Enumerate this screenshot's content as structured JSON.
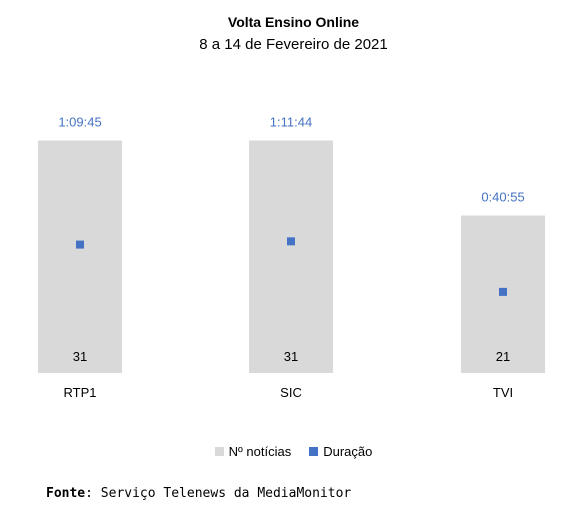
{
  "title": "Volta Ensino Online",
  "subtitle": "8 a 14 de Fevereiro de 2021",
  "colors": {
    "bar": "#d9d9d9",
    "marker": "#4472c4",
    "duration_label": "#4472c4"
  },
  "legend": {
    "bar_label": "Nº notícias",
    "marker_label": "Duração"
  },
  "source": {
    "prefix": "Fonte",
    "text": ": Serviço Telenews da MediaMonitor"
  },
  "chart_data": {
    "type": "bar",
    "categories": [
      "RTP1",
      "SIC",
      "TVI"
    ],
    "series": [
      {
        "name": "Nº notícias",
        "type": "bar",
        "values": [
          31,
          31,
          21
        ],
        "labels": [
          "31",
          "31",
          "21"
        ]
      },
      {
        "name": "Duração",
        "type": "scatter",
        "values_seconds": [
          4185,
          4304,
          2455
        ],
        "labels": [
          "1:09:45",
          "1:11:44",
          "0:40:55"
        ]
      }
    ],
    "legend_position": "bottom",
    "grid": false
  }
}
